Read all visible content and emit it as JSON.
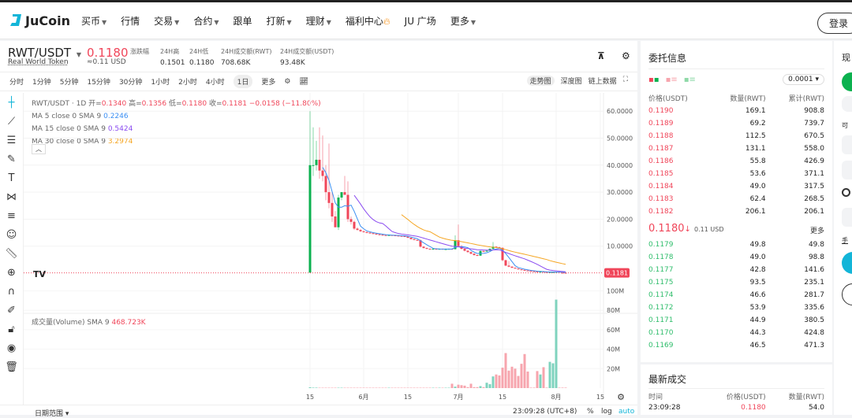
{
  "nav": {
    "brand": "JuCoin",
    "items": [
      {
        "label": "买币",
        "caret": true
      },
      {
        "label": "行情"
      },
      {
        "label": "交易",
        "caret": true
      },
      {
        "label": "合约",
        "caret": true
      },
      {
        "label": "跟单"
      },
      {
        "label": "打新",
        "caret": true
      },
      {
        "label": "理财",
        "caret": true
      },
      {
        "label": "福利中心",
        "fire": true
      },
      {
        "label": "JU 广场"
      },
      {
        "label": "更多",
        "caret": true
      }
    ],
    "login": "登录"
  },
  "ticker": {
    "pair": "RWT/USDT",
    "name": "Real World Token",
    "price": "0.1180",
    "usd": "≈0.11 USD",
    "stats": [
      {
        "label": "涨跌幅",
        "value": ""
      },
      {
        "label": "24H高",
        "value": "0.1501"
      },
      {
        "label": "24H低",
        "value": "0.1180"
      },
      {
        "label": "24H成交额(RWT)",
        "value": "708.68K"
      },
      {
        "label": "24H成交额(USDT)",
        "value": "93.48K"
      }
    ]
  },
  "timeframes": [
    "分时",
    "1分钟",
    "5分钟",
    "15分钟",
    "30分钟",
    "1小时",
    "2小时",
    "4小时",
    "1日",
    "更多"
  ],
  "selected_timeframe": "1日",
  "view_tabs": [
    "走势图",
    "深度图",
    "链上数据"
  ],
  "legend": {
    "title": "RWT/USDT · 1D",
    "o_label": "开=",
    "o": "0.1340",
    "h_label": "高=",
    "h": "0.1356",
    "l_label": "低=",
    "l": "0.1180",
    "c_label": "收=",
    "c": "0.1181",
    "chg": "−0.0158 (−11.80%)",
    "ma": [
      {
        "label": "MA 5 close 0 SMA 9",
        "value": "0.2246",
        "color": "#3b8ff3"
      },
      {
        "label": "MA 15 close 0 SMA 9",
        "value": "0.5424",
        "color": "#8a4bf0"
      },
      {
        "label": "MA 30 close 0 SMA 9",
        "value": "3.2974",
        "color": "#f5a623"
      }
    ],
    "volume_label": "成交量(Volume) SMA 9",
    "volume_value": "468.723K"
  },
  "chart_data": {
    "type": "candlestick",
    "price_ticks": [
      "60.0000",
      "50.0000",
      "40.0000",
      "30.0000",
      "20.0000",
      "10.0000"
    ],
    "price_tick_values": [
      60,
      50,
      40,
      30,
      20,
      10
    ],
    "last_price_label": "0.1181",
    "last_price": 0.1181,
    "volume_ticks": [
      "100M",
      "80M",
      "60M",
      "40M",
      "20M"
    ],
    "volume_tick_values": [
      100,
      80,
      60,
      40,
      20
    ],
    "x_ticks": [
      "15",
      "6月",
      "15",
      "7月",
      "15",
      "8月",
      "15"
    ],
    "x_tick_days": [
      0,
      17,
      31,
      47,
      61,
      78,
      92
    ],
    "up_color": "#0bb14f",
    "down_color": "#f0465a",
    "ohlcv": [
      [
        0.2,
        60,
        0.1,
        40,
        0.8
      ],
      [
        40,
        54,
        36,
        40,
        0.5
      ],
      [
        40,
        49,
        38,
        42,
        0.5
      ],
      [
        42,
        54,
        35,
        38,
        0.4
      ],
      [
        38,
        51,
        34,
        36,
        0.4
      ],
      [
        36,
        40,
        27,
        30,
        0.4
      ],
      [
        30,
        48,
        24,
        26,
        0.4
      ],
      [
        26,
        30,
        19,
        21,
        0.4
      ],
      [
        21,
        23,
        17,
        17,
        0.4
      ],
      [
        17,
        29,
        16,
        28,
        0.4
      ],
      [
        28,
        30,
        27,
        30,
        0.4
      ],
      [
        30,
        36,
        29,
        29,
        0.4
      ],
      [
        29,
        34,
        19,
        20,
        0.4
      ],
      [
        20,
        21,
        18,
        19,
        0.4
      ],
      [
        19,
        19.5,
        16,
        16.5,
        0.4
      ],
      [
        16.5,
        17,
        15.8,
        16,
        0.4
      ],
      [
        16,
        16.4,
        15.3,
        15.5,
        0.4
      ],
      [
        15.5,
        15.8,
        15,
        15.2,
        0.4
      ],
      [
        15.2,
        15.5,
        14.8,
        15,
        0.4
      ],
      [
        15,
        15.2,
        14.6,
        14.8,
        0.4
      ],
      [
        14.8,
        15,
        14.4,
        14.6,
        0.4
      ],
      [
        14.6,
        14.8,
        14.2,
        14.4,
        0.4
      ],
      [
        14.4,
        14.6,
        14,
        14.2,
        0.4
      ],
      [
        14.2,
        14.4,
        14,
        14.1,
        0.4
      ],
      [
        14.1,
        14.3,
        13.9,
        14,
        0.4
      ],
      [
        14,
        14.2,
        13.9,
        14.1,
        0.4
      ],
      [
        14.1,
        14.2,
        13.9,
        14,
        0.4
      ],
      [
        14,
        14.2,
        13.8,
        13.9,
        0.4
      ],
      [
        13.9,
        14,
        13.7,
        13.8,
        0.4
      ],
      [
        13.8,
        13.9,
        13.6,
        13.7,
        0.4
      ],
      [
        13.7,
        13.8,
        13.4,
        13.6,
        0.4
      ],
      [
        13.6,
        13.7,
        13,
        13.1,
        0.4
      ],
      [
        13.1,
        13.2,
        12.5,
        12.6,
        0.4
      ],
      [
        12.6,
        12.8,
        12.2,
        12.3,
        0.4
      ],
      [
        12.3,
        12.5,
        12,
        12.2,
        0.4
      ],
      [
        12.2,
        12.5,
        9.5,
        9.8,
        0.4
      ],
      [
        9.8,
        10,
        9.2,
        9.3,
        0.4
      ],
      [
        9.3,
        9.5,
        8.9,
        9,
        0.4
      ],
      [
        9,
        9.2,
        8.8,
        8.9,
        0.4
      ],
      [
        8.9,
        9.2,
        8.8,
        9,
        0.4
      ],
      [
        9,
        9.1,
        8.8,
        8.9,
        0.4
      ],
      [
        8.9,
        9.1,
        8.7,
        9,
        0.4
      ],
      [
        9,
        9.1,
        8.8,
        8.9,
        0.4
      ],
      [
        8.9,
        9.1,
        8.7,
        8.9,
        0.4
      ],
      [
        8.9,
        9.1,
        8.7,
        9,
        0.4
      ],
      [
        9,
        9.1,
        8.8,
        8.9,
        4.5
      ],
      [
        8.9,
        14,
        8.7,
        12.2,
        1.5
      ],
      [
        12.2,
        18,
        9.8,
        10,
        3.5
      ],
      [
        10,
        10.4,
        8.8,
        9,
        3
      ],
      [
        9,
        9.2,
        8.1,
        8.3,
        2.5
      ],
      [
        8.3,
        8.5,
        7.6,
        7.8,
        1
      ],
      [
        7.8,
        8,
        7,
        7.2,
        4.5
      ],
      [
        7.2,
        7.4,
        6.5,
        6.7,
        1
      ],
      [
        6.7,
        6.9,
        6.3,
        6.5,
        1
      ],
      [
        6.5,
        8.5,
        6.4,
        8.2,
        2
      ],
      [
        8.2,
        8.4,
        7.8,
        8,
        1
      ],
      [
        8,
        8.5,
        7.9,
        8.3,
        5.5
      ],
      [
        8.3,
        9.2,
        8.2,
        9,
        4
      ],
      [
        9,
        11.5,
        8.9,
        9.8,
        12
      ],
      [
        9.8,
        10,
        9.4,
        9.6,
        14
      ],
      [
        9.6,
        9.8,
        9.2,
        9.4,
        13
      ],
      [
        9.4,
        9.5,
        4.4,
        4.8,
        21
      ],
      [
        4.8,
        5,
        2.6,
        2.8,
        36
      ],
      [
        2.8,
        4.5,
        2.2,
        2.4,
        18
      ],
      [
        2.4,
        2.6,
        1.9,
        2,
        22
      ],
      [
        2,
        2.1,
        1.6,
        1.7,
        20
      ],
      [
        1.7,
        1.8,
        1.3,
        1.4,
        12.5
      ],
      [
        1.4,
        1.5,
        1.1,
        1.2,
        25
      ],
      [
        1.2,
        1.3,
        0.9,
        1,
        35
      ],
      [
        1,
        1.1,
        0.8,
        0.85,
        17
      ],
      [
        0.85,
        0.9,
        0.7,
        0.72,
        0.5
      ],
      [
        0.72,
        0.8,
        0.6,
        0.62,
        0.5
      ],
      [
        0.62,
        0.7,
        0.5,
        0.52,
        17.5
      ],
      [
        0.52,
        0.6,
        0.45,
        0.55,
        14
      ],
      [
        0.55,
        0.6,
        0.4,
        0.42,
        21.5
      ],
      [
        0.42,
        0.45,
        0.35,
        0.36,
        0.5
      ],
      [
        0.36,
        0.45,
        0.3,
        0.4,
        27
      ],
      [
        0.4,
        0.45,
        0.28,
        0.42,
        25.5
      ],
      [
        0.42,
        0.5,
        0.2,
        0.45,
        91
      ],
      [
        0.45,
        0.46,
        0.15,
        0.16,
        0.5
      ],
      [
        0.16,
        0.18,
        0.13,
        0.134,
        0.5
      ],
      [
        0.134,
        0.1356,
        0.118,
        0.1181,
        0.5
      ]
    ]
  },
  "chart_footer": {
    "date_range": "日期范围",
    "time": "23:09:28 (UTC+8)",
    "pct": "%",
    "log": "log",
    "auto": "auto"
  },
  "orderbook": {
    "title": "委托信息",
    "precision": "0.0001",
    "headers": [
      "价格(USDT)",
      "数量(RWT)",
      "累计(RWT)"
    ],
    "asks": [
      [
        "0.1190",
        "169.1",
        "908.8"
      ],
      [
        "0.1189",
        "69.2",
        "739.7"
      ],
      [
        "0.1188",
        "112.5",
        "670.5"
      ],
      [
        "0.1187",
        "131.1",
        "558.0"
      ],
      [
        "0.1186",
        "55.8",
        "426.9"
      ],
      [
        "0.1185",
        "53.6",
        "371.1"
      ],
      [
        "0.1184",
        "49.0",
        "317.5"
      ],
      [
        "0.1183",
        "62.4",
        "268.5"
      ],
      [
        "0.1182",
        "206.1",
        "206.1"
      ]
    ],
    "last": "0.1180",
    "last_arrow": "↓",
    "last_usd": "0.11 USD",
    "more": "更多",
    "bids": [
      [
        "0.1179",
        "49.8",
        "49.8"
      ],
      [
        "0.1178",
        "49.0",
        "98.8"
      ],
      [
        "0.1177",
        "42.8",
        "141.6"
      ],
      [
        "0.1175",
        "93.5",
        "235.1"
      ],
      [
        "0.1174",
        "46.6",
        "281.7"
      ],
      [
        "0.1172",
        "53.9",
        "335.6"
      ],
      [
        "0.1171",
        "44.9",
        "380.5"
      ],
      [
        "0.1170",
        "44.3",
        "424.8"
      ],
      [
        "0.1169",
        "46.5",
        "471.3"
      ]
    ]
  },
  "trades": {
    "title": "最新成交",
    "headers": [
      "时间",
      "价格(USDT)",
      "数量(RWT)"
    ],
    "rows": [
      [
        "23:09:28",
        "0.1180",
        "54.0"
      ]
    ]
  },
  "right_panel": {
    "title": "现",
    "avail": "可",
    "hand": "手"
  }
}
